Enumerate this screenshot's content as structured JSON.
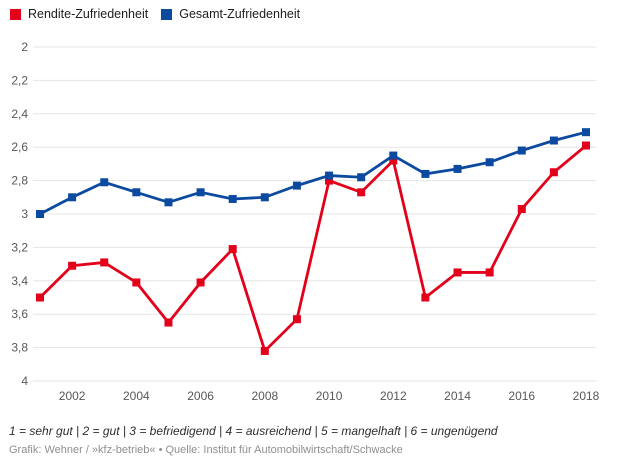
{
  "legend": [
    {
      "label": "Rendite-Zufriedenheit",
      "color": "#e2001a"
    },
    {
      "label": "Gesamt-Zufriedenheit",
      "color": "#0c4aa0"
    }
  ],
  "chart_data": {
    "type": "line",
    "x": [
      "2001",
      "2002",
      "2003",
      "2004",
      "2005",
      "2006",
      "2007",
      "2008",
      "2009",
      "2010",
      "2011",
      "2012",
      "2013",
      "2014",
      "2015",
      "2016",
      "2017",
      "2018"
    ],
    "series": [
      {
        "name": "Rendite-Zufriedenheit",
        "color": "#e2001a",
        "values": [
          3.5,
          3.31,
          3.29,
          3.41,
          3.65,
          3.41,
          3.21,
          3.82,
          3.63,
          2.8,
          2.87,
          2.68,
          3.5,
          3.35,
          3.35,
          2.97,
          2.75,
          2.59
        ]
      },
      {
        "name": "Gesamt-Zufriedenheit",
        "color": "#0c4aa0",
        "values": [
          3.0,
          2.9,
          2.81,
          2.87,
          2.93,
          2.87,
          2.91,
          2.9,
          2.83,
          2.77,
          2.78,
          2.65,
          2.76,
          2.73,
          2.69,
          2.62,
          2.56,
          2.51
        ]
      }
    ],
    "ylim": [
      2,
      4
    ],
    "y_inverted": true,
    "y_tick_step": 0.2,
    "y_tick_labels": [
      "2",
      "2,2",
      "2,4",
      "2,6",
      "2,8",
      "3",
      "3,2",
      "3,4",
      "3,6",
      "3,8",
      "4"
    ],
    "x_tick_labels": [
      "2002",
      "2004",
      "2006",
      "2008",
      "2010",
      "2012",
      "2014",
      "2016",
      "2018"
    ],
    "grid": "horizontal",
    "legend_position": "top-left",
    "note": "lower value = better grade (axis inverted)"
  },
  "colors": {
    "gridline": "#e5e5e5",
    "tick_text": "#585858",
    "background": "#ffffff"
  },
  "footnotes": {
    "scale": "1 = sehr gut | 2 = gut | 3 = befriedigend | 4 = ausreichend | 5 = mangelhaft | 6 = ungenügend",
    "credit": "Grafik: Wehner / »kfz-betrieb« • Quelle: Institut für Automobilwirtschaft/Schwacke"
  }
}
